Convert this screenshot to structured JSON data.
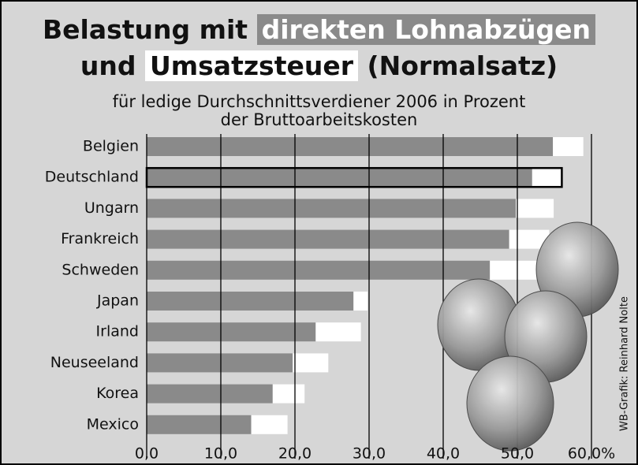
{
  "chart_data": {
    "type": "stacked_bar_horizontal",
    "title_start": "Belastung mit",
    "title_middle": "und",
    "title_end": "(Normalsatz)",
    "subtitle": [
      "für ledige Durchschnittsverdiener 2006 in Prozent",
      "der Bruttoarbeitskosten"
    ],
    "credit": "WB-Grafik: Reinhard Nolte",
    "categories": [
      "Belgien",
      "Deutschland",
      "Ungarn",
      "Frankreich",
      "Schweden",
      "Japan",
      "Irland",
      "Neuseeland",
      "Korea",
      "Mexico"
    ],
    "series": [
      {
        "name": "direkten Lohnabzügen",
        "color": "#8a8a8a",
        "values": [
          54.8,
          52.0,
          49.8,
          48.9,
          46.3,
          27.9,
          22.8,
          19.7,
          17.0,
          14.1
        ]
      },
      {
        "name": "Umsatzsteuer",
        "color": "#ffffff",
        "values": [
          4.1,
          4.0,
          5.1,
          5.4,
          6.4,
          1.9,
          6.1,
          4.8,
          4.3,
          4.9
        ]
      }
    ],
    "highlight": "Deutschland",
    "xlim": [
      0,
      60
    ],
    "xticks": [
      {
        "value": 0,
        "label": "0,0"
      },
      {
        "value": 10,
        "label": "10,0"
      },
      {
        "value": 20,
        "label": "20,0"
      },
      {
        "value": 30,
        "label": "30,0"
      },
      {
        "value": 40,
        "label": "40,0"
      },
      {
        "value": 50,
        "label": "50,0"
      },
      {
        "value": 60,
        "label": "60,0%"
      }
    ],
    "grid": true
  }
}
